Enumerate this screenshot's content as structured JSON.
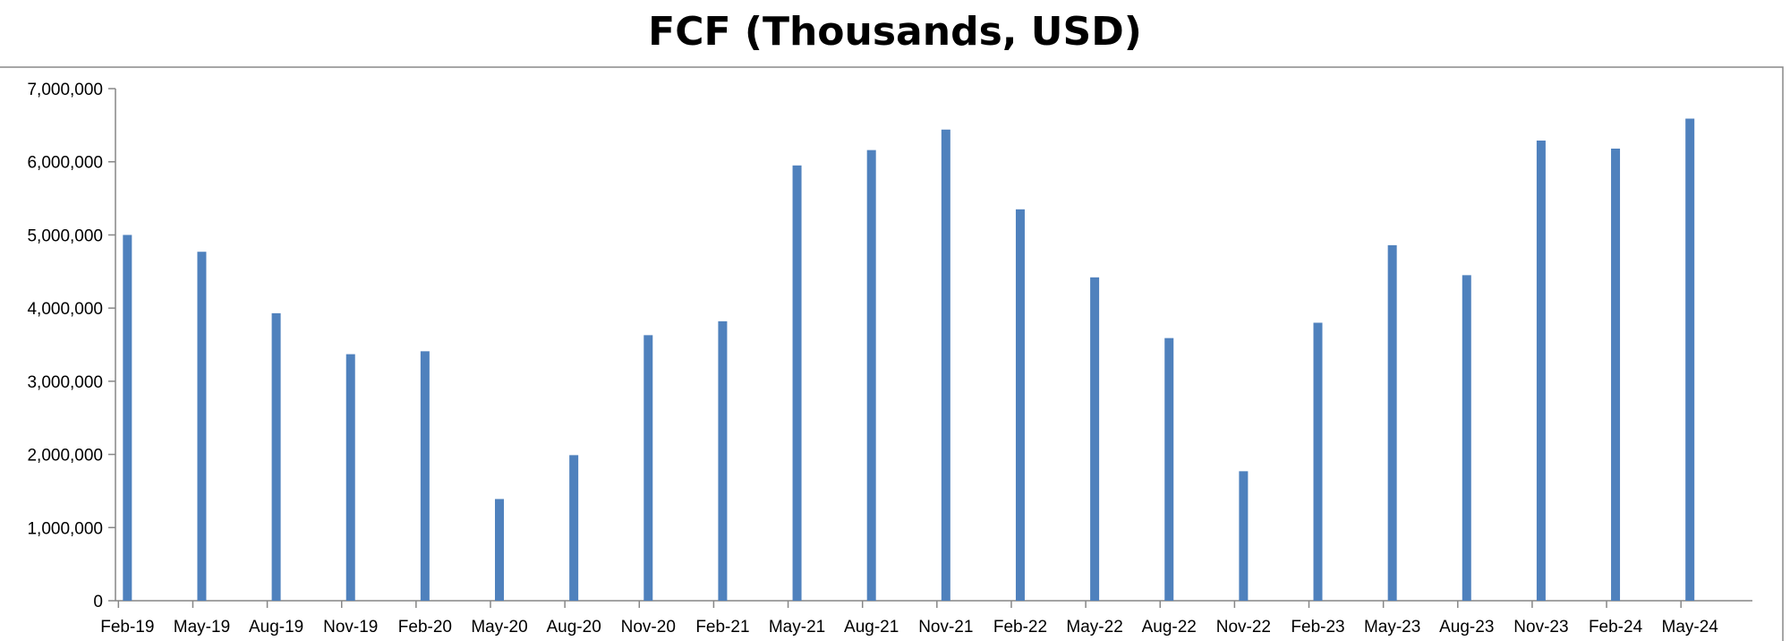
{
  "chart_data": {
    "type": "bar",
    "title": "FCF (Thousands, USD)",
    "xlabel": "",
    "ylabel": "",
    "ylim": [
      0,
      7000000
    ],
    "y_ticks": [
      0,
      1000000,
      2000000,
      3000000,
      4000000,
      5000000,
      6000000,
      7000000
    ],
    "y_tick_labels": [
      "0",
      "1,000,000",
      "2,000,000",
      "3,000,000",
      "4,000,000",
      "5,000,000",
      "6,000,000",
      "7,000,000"
    ],
    "grid": false,
    "legend": "none",
    "categories": [
      "Feb-19",
      "May-19",
      "Aug-19",
      "Nov-19",
      "Feb-20",
      "May-20",
      "Aug-20",
      "Nov-20",
      "Feb-21",
      "May-21",
      "Aug-21",
      "Nov-21",
      "Feb-22",
      "May-22",
      "Aug-22",
      "Nov-22",
      "Feb-23",
      "May-23",
      "Aug-23",
      "Nov-23",
      "Feb-24",
      "May-24"
    ],
    "values": [
      5000000,
      4770000,
      3930000,
      3370000,
      3410000,
      1390000,
      1990000,
      3630000,
      3820000,
      5950000,
      6160000,
      6440000,
      5350000,
      4420000,
      3590000,
      1770000,
      3800000,
      4860000,
      4450000,
      6290000,
      6180000,
      6590000
    ],
    "bar_color": "#4f81bd",
    "axis_color": "#868686",
    "frame_color": "#888888"
  }
}
